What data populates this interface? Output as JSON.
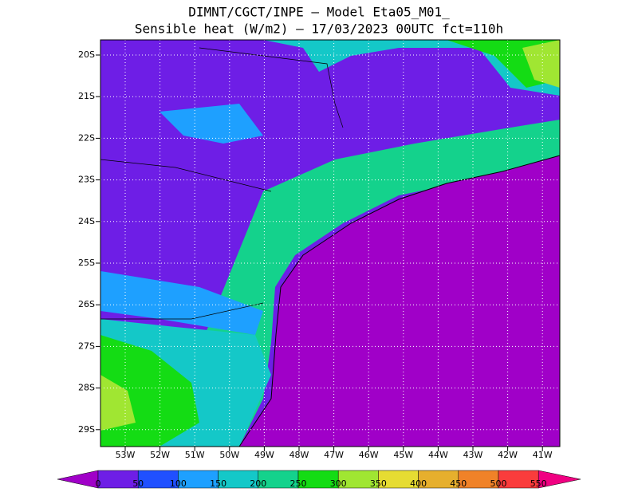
{
  "header": {
    "line1": "DIMNT/CGCT/INPE –  Model Eta05_M01_",
    "line2": "Sensible heat (W/m2) –  17/03/2023 00UTC fct=110h"
  },
  "map": {
    "lat_labels": [
      "20S",
      "21S",
      "22S",
      "23S",
      "24S",
      "25S",
      "26S",
      "27S",
      "28S",
      "29S"
    ],
    "lon_labels": [
      "53W",
      "52W",
      "51W",
      "50W",
      "49W",
      "48W",
      "47W",
      "46W",
      "45W",
      "44W",
      "43W",
      "42W",
      "41W"
    ]
  },
  "colorbar": {
    "labels": [
      "0",
      "50",
      "100",
      "150",
      "200",
      "250",
      "300",
      "350",
      "400",
      "450",
      "500",
      "550"
    ],
    "colors": [
      "#a000c8",
      "#6e1ee6",
      "#2050ff",
      "#1ea0ff",
      "#14c8c8",
      "#14d28c",
      "#14dc14",
      "#a0e632",
      "#e6dc32",
      "#e6af2d",
      "#f08228",
      "#fa3c3c",
      "#f00082"
    ]
  }
}
